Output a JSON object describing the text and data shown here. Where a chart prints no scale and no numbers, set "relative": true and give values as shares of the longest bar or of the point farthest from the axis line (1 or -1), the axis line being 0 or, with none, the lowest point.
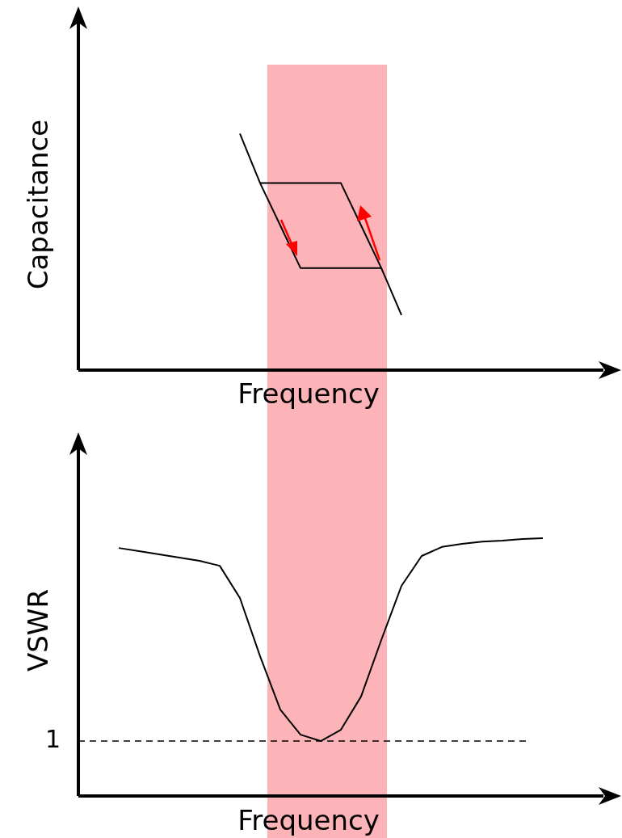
{
  "chart_data": [
    {
      "type": "line",
      "xlabel": "Frequency",
      "ylabel": "Capacitance",
      "relative": true,
      "marker": "none",
      "line_style": "solid",
      "categories": [
        null,
        null,
        null,
        null,
        null,
        null,
        null,
        null,
        null,
        null,
        null,
        null,
        null,
        null,
        null,
        null,
        null,
        null,
        null,
        null,
        null,
        null,
        null,
        null,
        null,
        null,
        null
      ],
      "series": [
        {
          "color": "#000000",
          "values": [
            null,
            null,
            null,
            null,
            null,
            null,
            null,
            null,
            1,
            0.791,
            0.612,
            0.432,
            0.432,
            0.432,
            0.432,
            0.432,
            0.233,
            null,
            null,
            null,
            null,
            null,
            null,
            null,
            null,
            null,
            null
          ]
        },
        {
          "color": "#000000",
          "values": [
            null,
            null,
            null,
            null,
            null,
            null,
            null,
            null,
            null,
            0.791,
            0.791,
            0.791,
            0.791,
            0.791,
            0.612,
            0.432,
            null,
            null,
            null,
            null,
            null,
            null,
            null,
            null,
            null,
            null,
            null
          ]
        }
      ]
    },
    {
      "type": "line",
      "xlabel": "Frequency",
      "ylabel": "VSWR",
      "relative": true,
      "marker": "none",
      "line_style": "solid",
      "categories": [
        null,
        null,
        null,
        null,
        null,
        null,
        null,
        null,
        null,
        null,
        null,
        null,
        null,
        null,
        null,
        null,
        null,
        null,
        null,
        null,
        null,
        null,
        null,
        null,
        null,
        null,
        null
      ],
      "ref_lines": [
        {
          "axis": "y",
          "value": 0.213,
          "line_style": "dashed",
          "color": "#000000"
        }
      ],
      "annotations": [
        "1"
      ],
      "series": [
        {
          "color": "#000000",
          "values": [
            null,
            null,
            0.962,
            0.95,
            0.937,
            0.925,
            0.912,
            0.893,
            0.768,
            0.542,
            0.335,
            0.238,
            0.213,
            0.257,
            0.386,
            0.605,
            0.815,
            0.931,
            0.966,
            0.978,
            0.987,
            0.991,
            0.997,
            1,
            null,
            null,
            null
          ]
        }
      ]
    }
  ]
}
